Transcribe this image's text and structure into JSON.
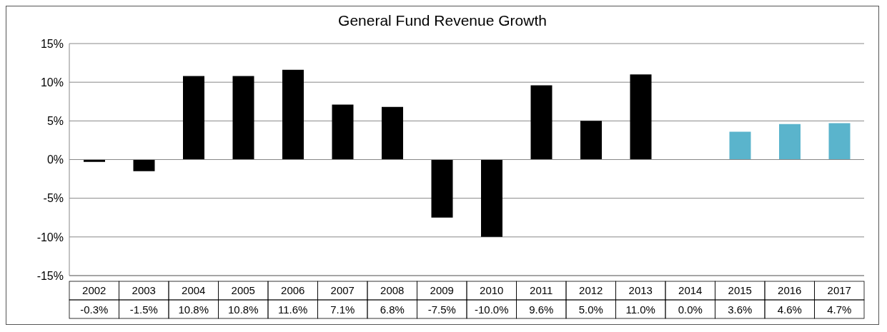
{
  "chart_data": {
    "type": "bar",
    "title": "General Fund Revenue Growth",
    "categories": [
      "2002",
      "2003",
      "2004",
      "2005",
      "2006",
      "2007",
      "2008",
      "2009",
      "2010",
      "2011",
      "2012",
      "2013",
      "2014",
      "2015",
      "2016",
      "2017"
    ],
    "values": [
      -0.3,
      -1.5,
      10.8,
      10.8,
      11.6,
      7.1,
      6.8,
      -7.5,
      -10.0,
      9.6,
      5.0,
      11.0,
      0.0,
      3.6,
      4.6,
      4.7
    ],
    "colors": [
      "#000000",
      "#000000",
      "#000000",
      "#000000",
      "#000000",
      "#000000",
      "#000000",
      "#000000",
      "#000000",
      "#000000",
      "#000000",
      "#000000",
      "#000000",
      "#5ab4cc",
      "#5ab4cc",
      "#5ab4cc"
    ],
    "value_labels": [
      "-0.3%",
      "-1.5%",
      "10.8%",
      "10.8%",
      "11.6%",
      "7.1%",
      "6.8%",
      "-7.5%",
      "-10.0%",
      "9.6%",
      "5.0%",
      "11.0%",
      "0.0%",
      "3.6%",
      "4.6%",
      "4.7%"
    ],
    "ylim": [
      -15,
      15
    ],
    "yticks": [
      {
        "value": -15,
        "label": "-15%"
      },
      {
        "value": -10,
        "label": "-10%"
      },
      {
        "value": -5,
        "label": "-5%"
      },
      {
        "value": 0,
        "label": "0%"
      },
      {
        "value": 5,
        "label": "5%"
      },
      {
        "value": 10,
        "label": "10%"
      },
      {
        "value": 15,
        "label": "15%"
      }
    ],
    "grid": "y"
  }
}
